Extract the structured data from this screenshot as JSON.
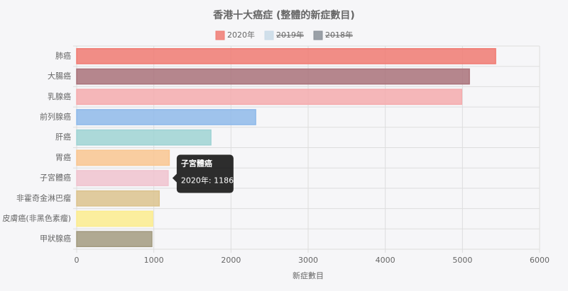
{
  "chart_data": {
    "type": "hbar",
    "title": "香港十大癌症 (整體的新症數目)",
    "categories": [
      "肺癌",
      "大腸癌",
      "乳腺癌",
      "前列腺癌",
      "肝癌",
      "胃癌",
      "子宮體癌",
      "非霍奇金淋巴瘤",
      "皮膚癌(非黑色素瘤)",
      "甲狀腺癌"
    ],
    "series": [
      {
        "name": "2020年",
        "colors": [
          "#f07a72",
          "#a9727a",
          "#f5acae",
          "#8fbaea",
          "#9fd3d4",
          "#f9c690",
          "#f0c3cf",
          "#dcc38e",
          "#fcec8e",
          "#a39b80"
        ],
        "values": [
          5430,
          5090,
          4990,
          2320,
          1740,
          1200,
          1186,
          1070,
          985,
          975
        ]
      },
      {
        "name": "2019年",
        "color": "#c9dbe8",
        "hidden": true
      },
      {
        "name": "2018年",
        "color": "#8a9099",
        "hidden": true
      }
    ],
    "xlabel": "新症數目",
    "xlim": [
      0,
      6000
    ],
    "xticks": [
      0,
      1000,
      2000,
      3000,
      4000,
      5000,
      6000
    ],
    "grid": true,
    "legend": "top",
    "tooltip": {
      "title": "子宮體癌",
      "label": "2020年: 1186",
      "index": 6
    }
  }
}
